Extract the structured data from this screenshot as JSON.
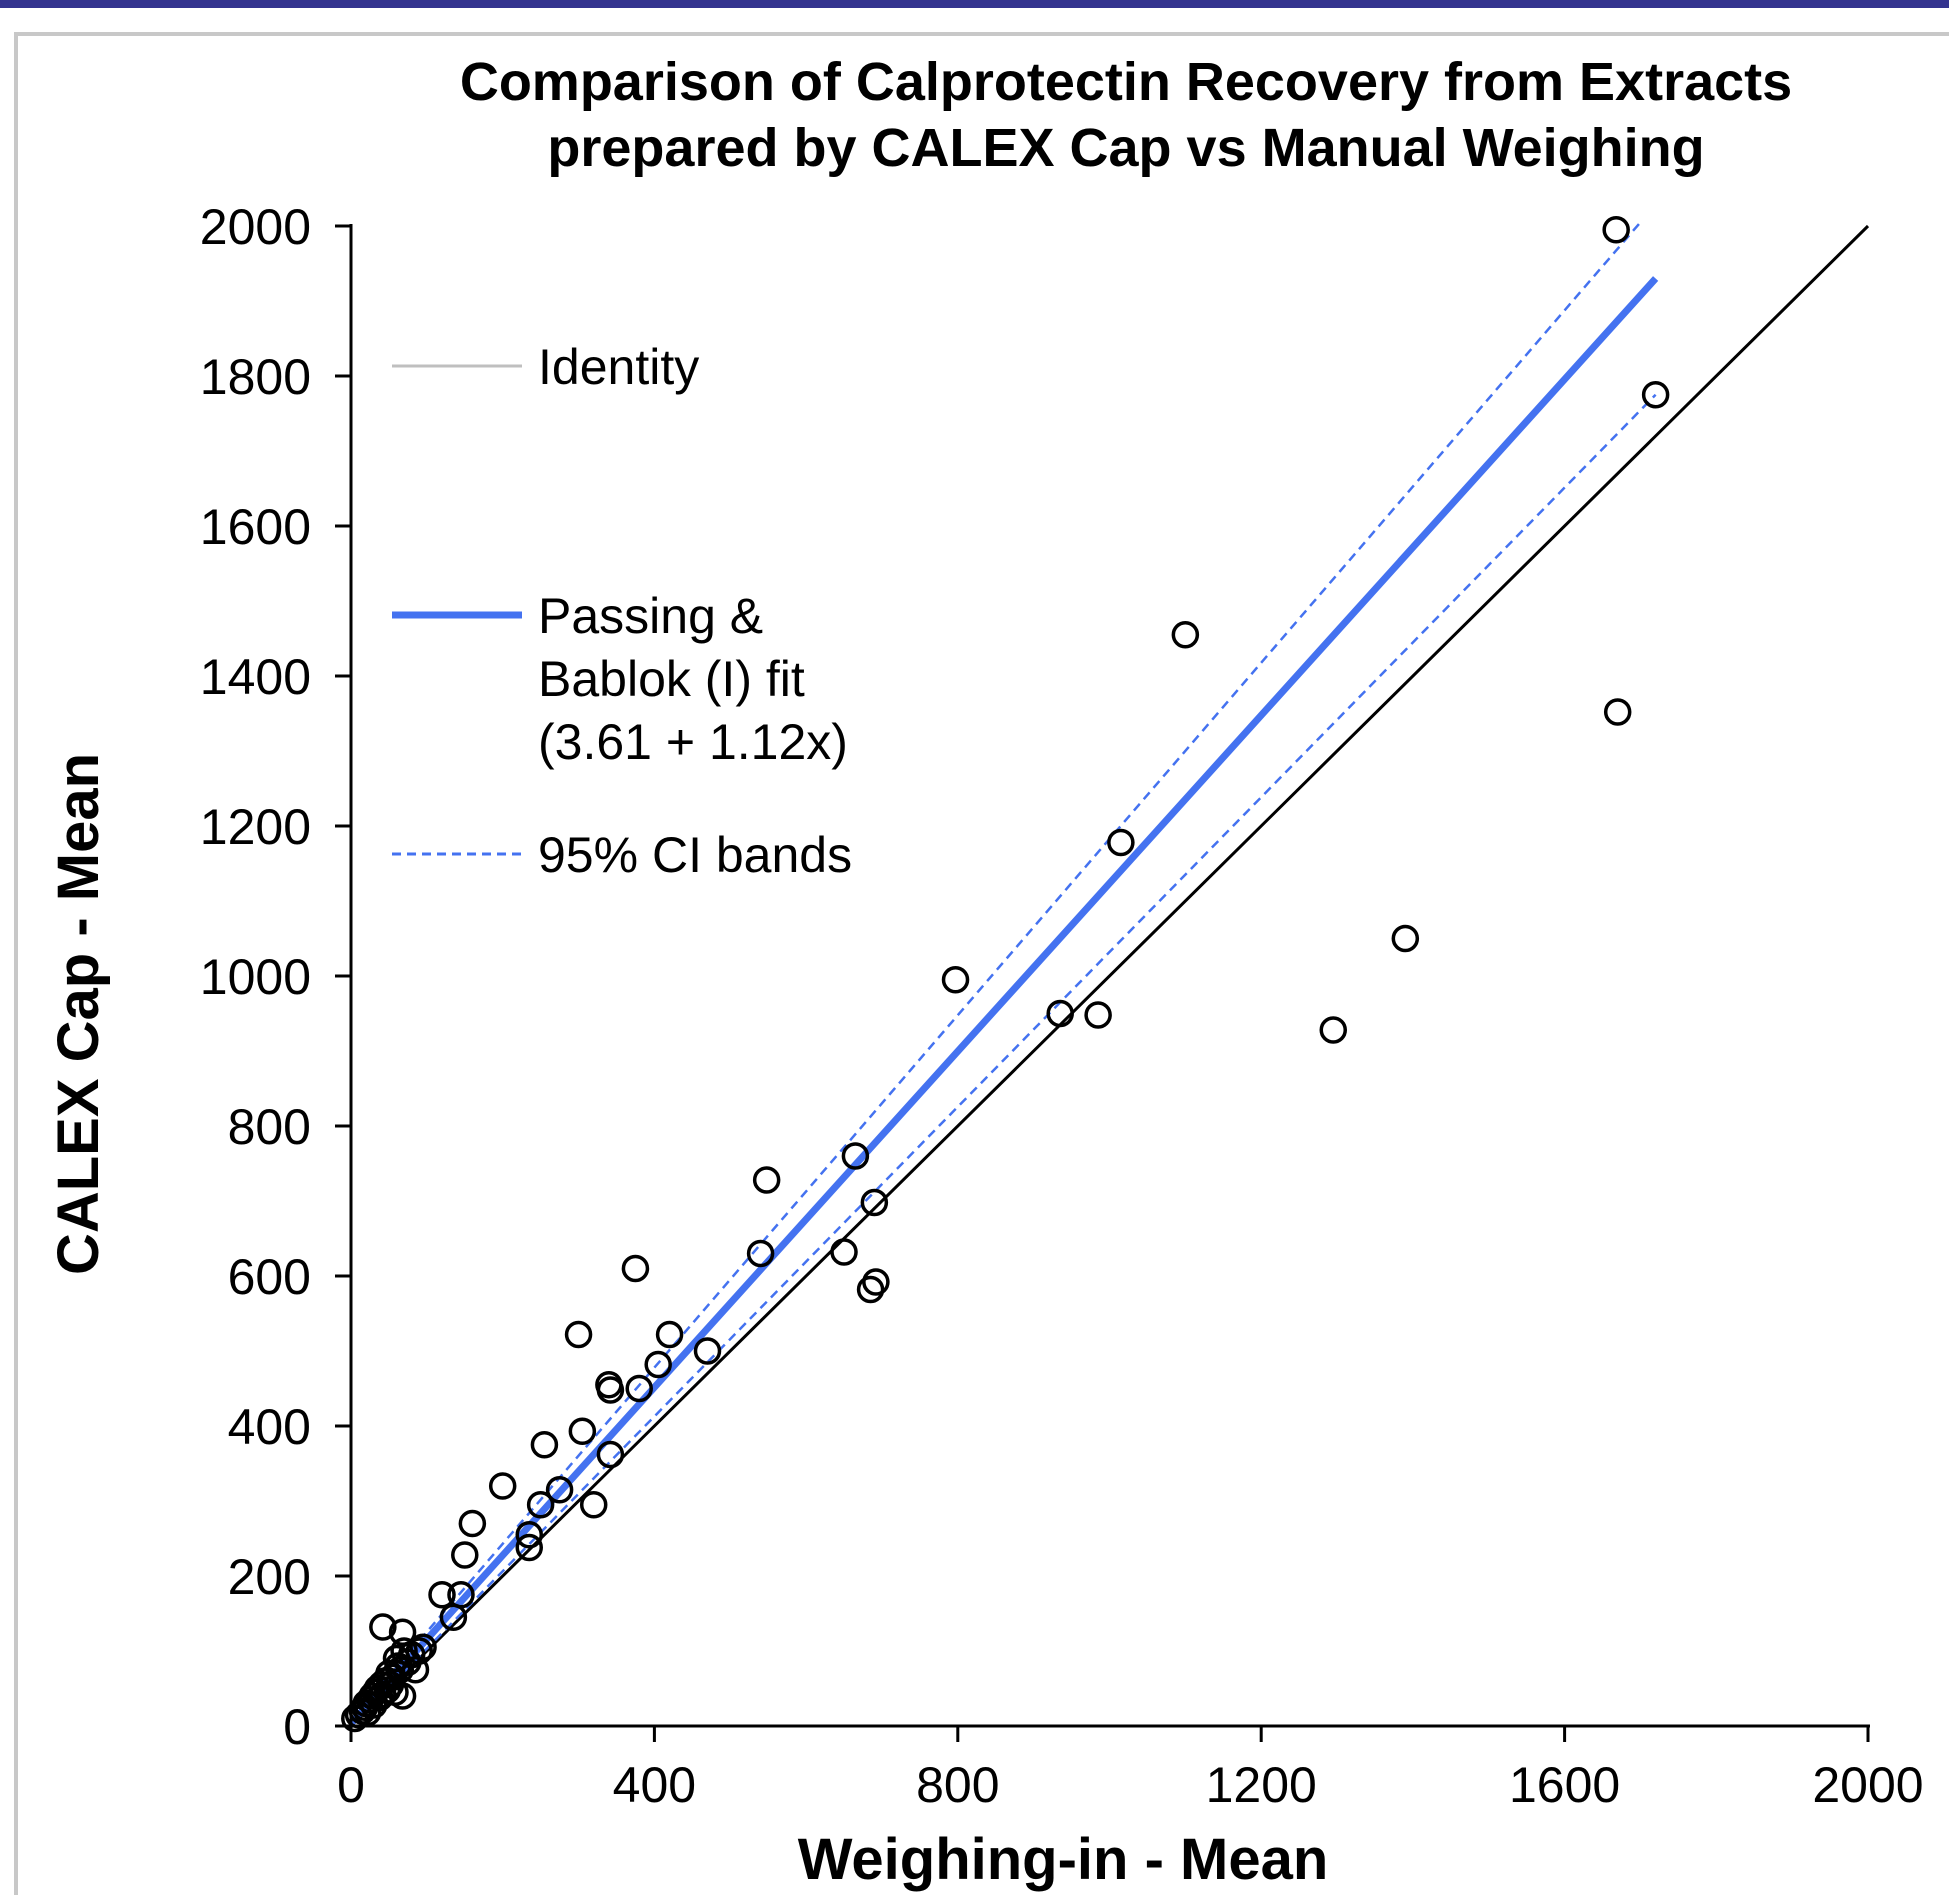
{
  "chart_data": {
    "type": "scatter",
    "title": [
      "Comparison of Calprotectin Recovery from Extracts",
      "prepared by  CALEX Cap vs Manual Weighing"
    ],
    "xlabel": "Weighing-in  - Mean",
    "ylabel": "CALEX Cap - Mean",
    "xlim": [
      0,
      2000
    ],
    "ylim": [
      0,
      2000
    ],
    "xticks": [
      0,
      400,
      800,
      1200,
      1600,
      2000
    ],
    "yticks": [
      0,
      200,
      400,
      600,
      800,
      1000,
      1200,
      1400,
      1600,
      1800,
      2000
    ],
    "grid": false,
    "legend_position": "top-left",
    "legend": [
      {
        "key": "identity",
        "label": "Identity"
      },
      {
        "key": "fit",
        "label": "Passing & Bablok (I) fit (3.61 + 1.12x)",
        "lines": [
          "Passing &",
          "Bablok (I) fit",
          "(3.61 + 1.12x)"
        ]
      },
      {
        "key": "ci",
        "label": "95% CI bands"
      }
    ],
    "colors": {
      "identity": "#000000",
      "identity_legend": "#bfbfbf",
      "fit": "#4472f0",
      "ci": "#4472f0",
      "points": "#000000"
    },
    "lines": {
      "identity": {
        "x": [
          0,
          2000
        ],
        "y": [
          0,
          2000
        ]
      },
      "fit": {
        "x": [
          0,
          1720
        ],
        "y": [
          3.61,
          1930
        ]
      },
      "ci_upper": {
        "x": [
          0,
          1700
        ],
        "y": [
          8,
          2005
        ]
      },
      "ci_lower": {
        "x": [
          0,
          1720
        ],
        "y": [
          0,
          1775
        ]
      }
    },
    "points": [
      [
        5,
        10
      ],
      [
        10,
        15
      ],
      [
        15,
        20
      ],
      [
        18,
        25
      ],
      [
        20,
        30
      ],
      [
        22,
        18
      ],
      [
        25,
        35
      ],
      [
        28,
        40
      ],
      [
        30,
        28
      ],
      [
        32,
        45
      ],
      [
        35,
        50
      ],
      [
        38,
        38
      ],
      [
        40,
        55
      ],
      [
        42,
        42
      ],
      [
        45,
        60
      ],
      [
        48,
        48
      ],
      [
        50,
        70
      ],
      [
        52,
        55
      ],
      [
        55,
        65
      ],
      [
        58,
        45
      ],
      [
        60,
        90
      ],
      [
        62,
        80
      ],
      [
        65,
        75
      ],
      [
        68,
        40
      ],
      [
        70,
        100
      ],
      [
        75,
        85
      ],
      [
        80,
        95
      ],
      [
        85,
        75
      ],
      [
        90,
        100
      ],
      [
        95,
        105
      ],
      [
        42,
        132
      ],
      [
        68,
        125
      ],
      [
        120,
        175
      ],
      [
        135,
        145
      ],
      [
        145,
        175
      ],
      [
        150,
        228
      ],
      [
        160,
        270
      ],
      [
        200,
        320
      ],
      [
        235,
        238
      ],
      [
        235,
        255
      ],
      [
        250,
        295
      ],
      [
        255,
        375
      ],
      [
        275,
        315
      ],
      [
        300,
        522
      ],
      [
        305,
        393
      ],
      [
        320,
        295
      ],
      [
        340,
        455
      ],
      [
        342,
        448
      ],
      [
        342,
        362
      ],
      [
        375,
        610
      ],
      [
        380,
        450
      ],
      [
        405,
        482
      ],
      [
        420,
        522
      ],
      [
        470,
        500
      ],
      [
        540,
        630
      ],
      [
        548,
        728
      ],
      [
        650,
        632
      ],
      [
        665,
        760
      ],
      [
        685,
        582
      ],
      [
        690,
        698
      ],
      [
        692,
        592
      ],
      [
        797,
        995
      ],
      [
        935,
        950
      ],
      [
        985,
        948
      ],
      [
        1015,
        1178
      ],
      [
        1100,
        1455
      ],
      [
        1295,
        928
      ],
      [
        1390,
        1050
      ],
      [
        1668,
        1995
      ],
      [
        1670,
        1352
      ],
      [
        1720,
        1775
      ]
    ]
  }
}
